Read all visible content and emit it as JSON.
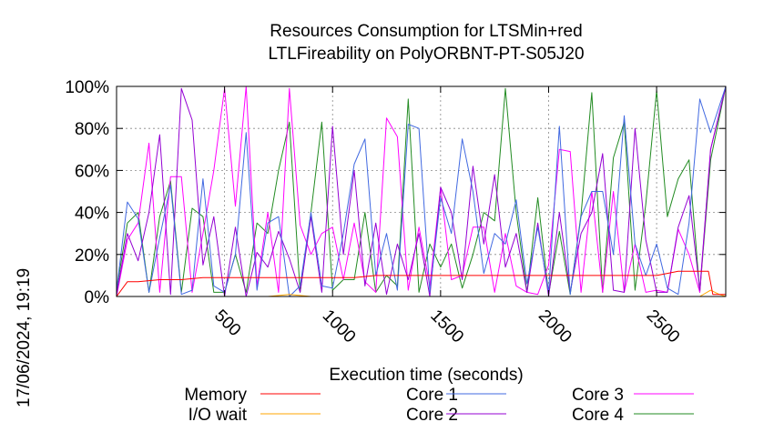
{
  "chart_data": {
    "type": "line",
    "title_lines": [
      "Resources Consumption for LTSMin+red",
      "LTLFireability on PolyORBNT-PT-S05J20"
    ],
    "xlabel": "Execution time (seconds)",
    "ylabel": "",
    "xlim": [
      0,
      2820
    ],
    "ylim": [
      0,
      100
    ],
    "x_ticks": [
      500,
      1000,
      1500,
      2000,
      2500
    ],
    "y_ticks": [
      0,
      20,
      40,
      60,
      80,
      100
    ],
    "y_tick_labels": [
      "0%",
      "20%",
      "40%",
      "60%",
      "80%",
      "100%"
    ],
    "grid": true,
    "timestamp": "17/06/2024, 19:19",
    "series": [
      {
        "name": "Memory",
        "color": "#ff0000",
        "x": [
          0,
          50,
          100,
          200,
          300,
          400,
          500,
          600,
          700,
          800,
          900,
          1000,
          1100,
          1200,
          1300,
          1400,
          1500,
          1600,
          1700,
          1800,
          1900,
          2000,
          2100,
          2200,
          2300,
          2400,
          2500,
          2550,
          2600,
          2700,
          2740,
          2760,
          2820
        ],
        "values": [
          0,
          7,
          7,
          8,
          8,
          9,
          9,
          9,
          9,
          9,
          9,
          9,
          9,
          10,
          10,
          10,
          10,
          10,
          10,
          10,
          10,
          10,
          10,
          10,
          10,
          10,
          10,
          11,
          12,
          12,
          12,
          1,
          1
        ]
      },
      {
        "name": "I/O wait",
        "color": "#ffa500",
        "x": [
          0,
          600,
          700,
          800,
          900,
          1000,
          1500,
          2000,
          2500,
          2700,
          2750,
          2790,
          2820
        ],
        "values": [
          0,
          0,
          0,
          1,
          0,
          0,
          0,
          0,
          0,
          0,
          3,
          1,
          0
        ]
      },
      {
        "name": "Core 1",
        "color": "#4169e1",
        "x": [
          0,
          50,
          100,
          150,
          200,
          250,
          300,
          350,
          400,
          450,
          500,
          550,
          600,
          650,
          700,
          750,
          800,
          850,
          900,
          950,
          1000,
          1050,
          1100,
          1150,
          1200,
          1250,
          1300,
          1350,
          1400,
          1450,
          1500,
          1550,
          1600,
          1650,
          1700,
          1750,
          1800,
          1850,
          1900,
          1950,
          2000,
          2050,
          2100,
          2150,
          2200,
          2250,
          2300,
          2350,
          2400,
          2450,
          2500,
          2550,
          2600,
          2650,
          2700,
          2750,
          2820
        ],
        "values": [
          3,
          45,
          37,
          2,
          28,
          53,
          1,
          3,
          56,
          5,
          2,
          20,
          78,
          3,
          35,
          38,
          0,
          5,
          40,
          5,
          4,
          30,
          63,
          75,
          10,
          30,
          3,
          82,
          80,
          2,
          47,
          30,
          75,
          50,
          11,
          30,
          25,
          46,
          6,
          33,
          2,
          81,
          1,
          38,
          50,
          50,
          20,
          86,
          25,
          10,
          25,
          4,
          1,
          35,
          94,
          78,
          100
        ]
      },
      {
        "name": "Core 2",
        "color": "#9400d3",
        "x": [
          0,
          50,
          100,
          150,
          200,
          250,
          300,
          350,
          400,
          450,
          500,
          550,
          600,
          650,
          700,
          750,
          800,
          850,
          900,
          950,
          1000,
          1050,
          1100,
          1150,
          1200,
          1250,
          1300,
          1350,
          1400,
          1450,
          1500,
          1550,
          1600,
          1650,
          1700,
          1750,
          1800,
          1850,
          1900,
          1950,
          2000,
          2050,
          2100,
          2150,
          2200,
          2250,
          2300,
          2350,
          2400,
          2450,
          2500,
          2550,
          2600,
          2650,
          2700,
          2750,
          2820
        ],
        "values": [
          1,
          30,
          17,
          40,
          77,
          1,
          99,
          84,
          15,
          38,
          0,
          33,
          0,
          21,
          14,
          31,
          18,
          2,
          38,
          2,
          81,
          20,
          60,
          5,
          35,
          1,
          25,
          8,
          30,
          0,
          52,
          40,
          8,
          62,
          25,
          58,
          14,
          30,
          2,
          35,
          0,
          40,
          2,
          30,
          40,
          68,
          3,
          2,
          80,
          27,
          2,
          2,
          33,
          48,
          3,
          70,
          100
        ]
      },
      {
        "name": "Core 3",
        "color": "#ff00ff",
        "x": [
          0,
          50,
          100,
          150,
          200,
          250,
          300,
          350,
          400,
          450,
          500,
          550,
          600,
          650,
          700,
          750,
          800,
          850,
          900,
          950,
          1000,
          1050,
          1100,
          1150,
          1200,
          1250,
          1300,
          1350,
          1400,
          1450,
          1500,
          1550,
          1600,
          1650,
          1700,
          1750,
          1800,
          1850,
          1900,
          1950,
          2000,
          2050,
          2100,
          2150,
          2200,
          2250,
          2300,
          2350,
          2400,
          2450,
          2500,
          2550,
          2600,
          2650,
          2700,
          2750,
          2820
        ],
        "values": [
          0,
          27,
          35,
          73,
          2,
          57,
          57,
          2,
          30,
          60,
          99,
          43,
          100,
          5,
          40,
          2,
          99,
          34,
          20,
          30,
          33,
          8,
          35,
          7,
          2,
          85,
          76,
          3,
          33,
          5,
          52,
          8,
          10,
          33,
          33,
          2,
          30,
          5,
          2,
          1,
          15,
          70,
          69,
          2,
          50,
          2,
          50,
          2,
          25,
          2,
          3,
          2,
          32,
          20,
          2,
          70,
          100
        ]
      },
      {
        "name": "Core 4",
        "color": "#228b22",
        "x": [
          0,
          50,
          100,
          150,
          200,
          250,
          300,
          350,
          400,
          450,
          500,
          550,
          600,
          650,
          700,
          750,
          800,
          850,
          900,
          950,
          1000,
          1050,
          1100,
          1150,
          1200,
          1250,
          1300,
          1350,
          1400,
          1450,
          1500,
          1550,
          1600,
          1650,
          1700,
          1750,
          1800,
          1850,
          1900,
          1950,
          2000,
          2050,
          2100,
          2150,
          2200,
          2250,
          2300,
          2350,
          2400,
          2450,
          2500,
          2550,
          2600,
          2650,
          2700,
          2750,
          2820
        ],
        "values": [
          3,
          35,
          40,
          2,
          38,
          55,
          2,
          42,
          38,
          2,
          2,
          20,
          2,
          35,
          30,
          60,
          83,
          2,
          40,
          83,
          3,
          8,
          8,
          40,
          2,
          10,
          5,
          94,
          2,
          25,
          14,
          25,
          4,
          20,
          40,
          36,
          99,
          40,
          2,
          47,
          1,
          31,
          1,
          39,
          97,
          2,
          66,
          83,
          3,
          44,
          98,
          38,
          56,
          65,
          2,
          65,
          100
        ]
      }
    ]
  }
}
